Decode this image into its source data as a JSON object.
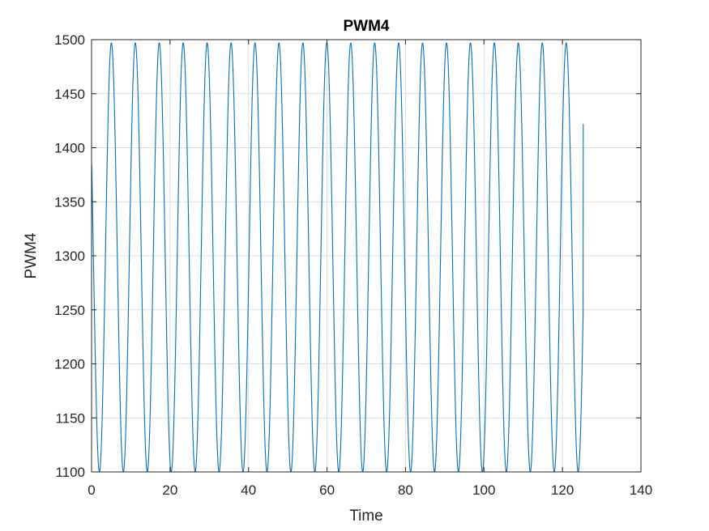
{
  "chart_data": {
    "type": "line",
    "title": "PWM4",
    "xlabel": "Time",
    "ylabel": "PWM4",
    "xlim": [
      0,
      140
    ],
    "ylim": [
      1100,
      1500
    ],
    "xticks": [
      0,
      20,
      40,
      60,
      80,
      100,
      120,
      140
    ],
    "yticks": [
      1100,
      1150,
      1200,
      1250,
      1300,
      1350,
      1400,
      1450,
      1500
    ],
    "grid": true,
    "series": [
      {
        "color": "#0072BD",
        "description_points": {
          "x": [
            0,
            2.0,
            5.05,
            8.1,
            11.15,
            14.2,
            17.25,
            20.3,
            23.35,
            26.4,
            29.45,
            32.5,
            35.55,
            38.6,
            41.65,
            44.7,
            47.75,
            50.8,
            53.85,
            56.9,
            59.95,
            63.0,
            66.05,
            69.1,
            72.15,
            75.2,
            78.25,
            81.3,
            84.35,
            87.4,
            90.45,
            93.5,
            96.55,
            99.6,
            102.65,
            105.7,
            108.75,
            111.8,
            114.85,
            117.9,
            120.95,
            124.0,
            125.3
          ],
          "y": [
            1350,
            1100,
            1497,
            1100,
            1497,
            1100,
            1497,
            1100,
            1497,
            1100,
            1497,
            1100,
            1497,
            1100,
            1497,
            1100,
            1497,
            1100,
            1497,
            1100,
            1497,
            1100,
            1497,
            1100,
            1497,
            1100,
            1497,
            1100,
            1497,
            1100,
            1497,
            1100,
            1497,
            1100,
            1497,
            1100,
            1497,
            1100,
            1497,
            1100,
            1497,
            1100,
            1422
          ]
        },
        "model": {
          "center": 1298.5,
          "amplitude": 198.5,
          "period": 6.1,
          "phase_peak_at": 5.05,
          "x_start": 0,
          "x_end": 125.3,
          "y_start": 1350,
          "y_end": 1422
        }
      }
    ]
  }
}
